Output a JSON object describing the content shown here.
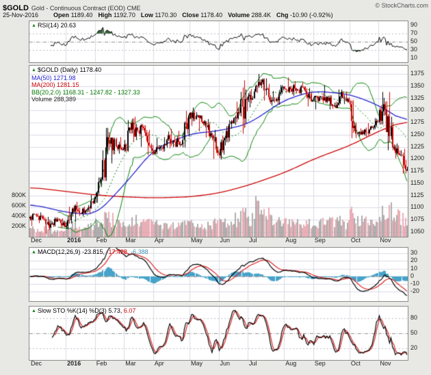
{
  "header": {
    "symbol": "$GOLD",
    "description": "Gold - Continuous Contract (EOD) CME",
    "copyright": "© StockCharts.com",
    "date": "25-Nov-2016",
    "quote": [
      {
        "label": "Open",
        "value": "1189.40"
      },
      {
        "label": "High",
        "value": "1192.70"
      },
      {
        "label": "Low",
        "value": "1170.30"
      },
      {
        "label": "Close",
        "value": "1178.40"
      },
      {
        "label": "Volume",
        "value": "288.4K"
      },
      {
        "label": "Chg",
        "value": "-10.90 (-0.92%)"
      }
    ]
  },
  "panels": {
    "rsi": {
      "legend": "RSI(14) 20.63"
    },
    "main": {
      "legend_symbol": "$GOLD (Daily) 1178.40",
      "legend_ma50": "MA(50) 1271.98",
      "legend_ma200": "MA(200) 1281.15",
      "legend_bb": "BB(20,2.0) 1168.31 - 1247.82 - 1327.33",
      "legend_volume": "Volume 288,389"
    },
    "macd": {
      "name": "MACD(12,26,9)",
      "v1": "-23.815,",
      "v2": "-17.428,",
      "v3": "-6.388"
    },
    "sto": {
      "name": "Slow STO %K(14) %D(3)",
      "v1": "5.73,",
      "v2": "6.07"
    }
  },
  "chart_data": {
    "type": "candlestick",
    "title": "$GOLD (Daily)",
    "months": [
      "Dec",
      "2016",
      "Feb",
      "Mar",
      "Apr",
      "May",
      "Jun",
      "Jul",
      "Aug",
      "Sep",
      "Oct",
      "Nov"
    ],
    "month_bold_index": 1,
    "month_day_index": [
      0,
      25,
      45,
      65,
      85,
      110,
      130,
      150,
      175,
      195,
      220,
      240,
      260
    ],
    "price_axis": {
      "min": 1040,
      "max": 1392,
      "labels": [
        1375,
        1350,
        1325,
        1300,
        1275,
        1250,
        1225,
        1200,
        1175,
        1150,
        1125,
        1100,
        1075,
        1050
      ]
    },
    "volume_axis": {
      "labels": [
        "800K",
        "600K",
        "400K",
        "200K"
      ],
      "label_values": [
        800000,
        600000,
        400000,
        200000
      ]
    },
    "rsi_axis": {
      "min": 0,
      "max": 100,
      "labels": [
        90,
        70,
        50,
        30,
        10
      ],
      "overbought": 70,
      "oversold": 30,
      "mid": 50
    },
    "macd_axis": {
      "min": -32,
      "max": 37,
      "labels": [
        30,
        20,
        10,
        0,
        -10,
        -20
      ],
      "zero": 0
    },
    "sto_axis": {
      "min": -4,
      "max": 104,
      "labels": [
        80,
        50,
        20
      ],
      "upper": 80,
      "lower": 20,
      "mid": 50
    },
    "weekly_ohlcv": [
      [
        1078,
        1088,
        1062,
        1084,
        150
      ],
      [
        1084,
        1090,
        1068,
        1076,
        140
      ],
      [
        1076,
        1081,
        1046,
        1066,
        180
      ],
      [
        1066,
        1080,
        1060,
        1076,
        90
      ],
      [
        1076,
        1078,
        1058,
        1060,
        100
      ],
      [
        1060,
        1102,
        1056,
        1098,
        220
      ],
      [
        1098,
        1112,
        1071,
        1089,
        240
      ],
      [
        1089,
        1102,
        1082,
        1096,
        200
      ],
      [
        1096,
        1126,
        1088,
        1118,
        230
      ],
      [
        1118,
        1162,
        1110,
        1158,
        280
      ],
      [
        1158,
        1264,
        1155,
        1239,
        420
      ],
      [
        1239,
        1244,
        1191,
        1226,
        330
      ],
      [
        1226,
        1245,
        1211,
        1220,
        280
      ],
      [
        1220,
        1280,
        1215,
        1260,
        320
      ],
      [
        1260,
        1287,
        1235,
        1259,
        300
      ],
      [
        1259,
        1272,
        1225,
        1254,
        280
      ],
      [
        1254,
        1260,
        1208,
        1217,
        260
      ],
      [
        1217,
        1244,
        1210,
        1222,
        240
      ],
      [
        1222,
        1245,
        1215,
        1240,
        230
      ],
      [
        1240,
        1262,
        1222,
        1235,
        240
      ],
      [
        1235,
        1258,
        1225,
        1230,
        220
      ],
      [
        1230,
        1299,
        1224,
        1290,
        300
      ],
      [
        1290,
        1306,
        1268,
        1289,
        280
      ],
      [
        1289,
        1290,
        1257,
        1273,
        250
      ],
      [
        1273,
        1282,
        1244,
        1253,
        230
      ],
      [
        1253,
        1260,
        1200,
        1213,
        260
      ],
      [
        1213,
        1248,
        1199,
        1243,
        250
      ],
      [
        1243,
        1280,
        1234,
        1274,
        260
      ],
      [
        1274,
        1318,
        1270,
        1295,
        330
      ],
      [
        1295,
        1362,
        1252,
        1322,
        520
      ],
      [
        1322,
        1344,
        1306,
        1339,
        380
      ],
      [
        1339,
        1375,
        1336,
        1358,
        650
      ],
      [
        1358,
        1366,
        1320,
        1327,
        400
      ],
      [
        1327,
        1340,
        1310,
        1323,
        300
      ],
      [
        1323,
        1352,
        1312,
        1349,
        290
      ],
      [
        1349,
        1368,
        1336,
        1344,
        310
      ],
      [
        1344,
        1360,
        1330,
        1343,
        260
      ],
      [
        1343,
        1358,
        1332,
        1340,
        230
      ],
      [
        1340,
        1346,
        1308,
        1321,
        240
      ],
      [
        1321,
        1330,
        1302,
        1327,
        250
      ],
      [
        1327,
        1352,
        1315,
        1328,
        260
      ],
      [
        1328,
        1331,
        1302,
        1310,
        280
      ],
      [
        1310,
        1343,
        1305,
        1337,
        300
      ],
      [
        1337,
        1339,
        1313,
        1317,
        240
      ],
      [
        1317,
        1321,
        1243,
        1252,
        420
      ],
      [
        1252,
        1263,
        1246,
        1251,
        300
      ],
      [
        1251,
        1274,
        1246,
        1267,
        280
      ],
      [
        1267,
        1284,
        1260,
        1276,
        260
      ],
      [
        1276,
        1338,
        1271,
        1303,
        420
      ],
      [
        1303,
        1338,
        1218,
        1224,
        520
      ],
      [
        1224,
        1232,
        1201,
        1208,
        380
      ],
      [
        1208,
        1221,
        1170,
        1178,
        350
      ]
    ],
    "ma50_anchors": [
      1108,
      1090,
      1085,
      1148,
      1220,
      1252,
      1258,
      1272,
      1322,
      1340,
      1333,
      1310,
      1272
    ],
    "ma200_anchors": [
      1142,
      1133,
      1126,
      1122,
      1120,
      1122,
      1130,
      1146,
      1172,
      1200,
      1228,
      1258,
      1281
    ],
    "indicators": {
      "rsi_period": 14,
      "macd": [
        12,
        26,
        9
      ],
      "stochastic": [
        14,
        3,
        3
      ],
      "bollinger": [
        20,
        2
      ]
    },
    "last_values": {
      "close": 1178.4,
      "rsi": 20.63,
      "ma50": 1271.98,
      "ma200": 1281.15,
      "bb_lower": 1168.31,
      "bb_mid": 1247.82,
      "bb_upper": 1327.33,
      "volume": 288389,
      "macd_line": -23.815,
      "macd_signal": -17.428,
      "macd_hist": -6.388,
      "sto_k": 5.73,
      "sto_d": 6.07
    },
    "colors": {
      "up": "#000000",
      "down": "#cc0000",
      "ma50": "#2222cc",
      "ma200": "#cc0000",
      "bb": "#008000",
      "vol_up": "#9a9a9a",
      "vol_down": "#e49aa4",
      "rsi": "#000000",
      "rsi_fill": "#35663a",
      "macd_hist": "#46a2c8",
      "macd_line": "#000000",
      "macd_signal": "#dd2222",
      "sto_k": "#000000",
      "sto_d": "#dd2222",
      "grid": "#dadae6",
      "dashdot": "#8f8f8f",
      "dotted": "#b9b9c5"
    }
  }
}
